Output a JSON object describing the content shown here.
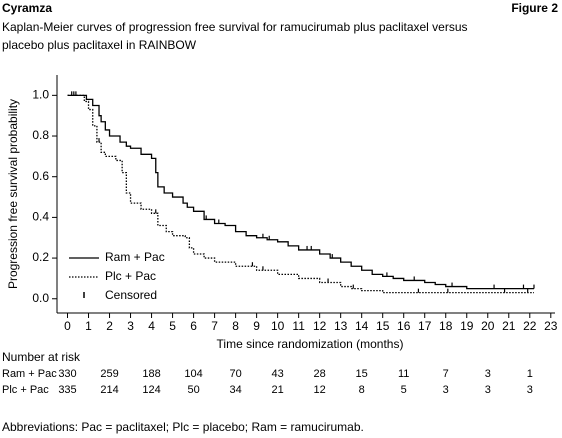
{
  "header": {
    "left": "Cyramza",
    "right": "Figure 2"
  },
  "chart_data": {
    "type": "km-step",
    "title": [
      "Kaplan-Meier curves of progression free survival for ramucirumab plus paclitaxel versus",
      "placebo plus paclitaxel in RAINBOW"
    ],
    "xlabel": "Time since randomization (months)",
    "ylabel": "Progression free survival probability",
    "xlim": [
      -0.5,
      23.2
    ],
    "ylim": [
      -0.07,
      1.1
    ],
    "xticks": [
      0,
      1,
      2,
      3,
      4,
      5,
      6,
      7,
      8,
      9,
      10,
      11,
      12,
      13,
      14,
      15,
      16,
      17,
      18,
      19,
      20,
      21,
      22,
      23
    ],
    "yticks": [
      {
        "value": 0,
        "label": "0.0"
      },
      {
        "value": 0.2,
        "label": "0.2"
      },
      {
        "value": 0.4,
        "label": "0.4"
      },
      {
        "value": 0.6,
        "label": "0.6"
      },
      {
        "value": 0.8,
        "label": "0.8"
      },
      {
        "value": 1,
        "label": "1.0"
      }
    ],
    "drawstyle": "steps-post",
    "legend": "lower left",
    "censored_label": "Censored",
    "series": [
      {
        "name": "Ram + Pac",
        "color": "#000000",
        "dash": "solid",
        "x": [
          0,
          0.5,
          0.9,
          1.2,
          1.5,
          1.6,
          1.8,
          2.0,
          2.5,
          2.8,
          3.0,
          3.5,
          4.0,
          4.2,
          4.3,
          4.6,
          5.0,
          5.5,
          5.7,
          6.0,
          6.5,
          7.0,
          7.5,
          8.0,
          8.5,
          9.0,
          9.5,
          10.0,
          10.5,
          11.0,
          12.0,
          12.5,
          13.0,
          13.5,
          14.0,
          14.5,
          15.0,
          15.5,
          16.0,
          17.0,
          17.5,
          18.0,
          19.0,
          22.2
        ],
        "values": [
          1.0,
          1.0,
          0.98,
          0.95,
          0.9,
          0.87,
          0.83,
          0.8,
          0.77,
          0.75,
          0.74,
          0.71,
          0.69,
          0.62,
          0.55,
          0.52,
          0.5,
          0.47,
          0.45,
          0.43,
          0.39,
          0.37,
          0.36,
          0.33,
          0.31,
          0.3,
          0.29,
          0.28,
          0.26,
          0.24,
          0.22,
          0.2,
          0.18,
          0.16,
          0.14,
          0.12,
          0.11,
          0.1,
          0.09,
          0.08,
          0.07,
          0.06,
          0.05,
          0.05
        ],
        "censored_x": [
          0.2,
          0.4,
          6.6,
          7.2,
          9.3,
          9.6,
          11.4,
          11.6,
          12.6,
          15.2,
          16.5,
          18.3,
          20.3,
          21.7,
          22.2
        ]
      },
      {
        "name": "Plc + Pac",
        "color": "#000000",
        "dash": "dotted",
        "x": [
          0,
          0.5,
          0.8,
          1.0,
          1.2,
          1.4,
          1.6,
          1.8,
          2.3,
          2.6,
          2.8,
          3.0,
          3.5,
          4.0,
          4.3,
          4.7,
          5.0,
          5.6,
          5.8,
          6.0,
          6.5,
          7.0,
          8.0,
          9.0,
          10.0,
          11.0,
          12.0,
          13.0,
          13.5,
          14.0,
          15.0,
          22.2
        ],
        "values": [
          1.0,
          1.0,
          0.97,
          0.93,
          0.85,
          0.77,
          0.72,
          0.7,
          0.68,
          0.62,
          0.52,
          0.47,
          0.44,
          0.42,
          0.36,
          0.33,
          0.31,
          0.3,
          0.25,
          0.22,
          0.2,
          0.18,
          0.16,
          0.14,
          0.12,
          0.1,
          0.08,
          0.06,
          0.05,
          0.04,
          0.03,
          0.03
        ],
        "censored_x": [
          0.3,
          1.5,
          4.2,
          8.8,
          9.3,
          12.4,
          13.6,
          16.7,
          18.1,
          20.8,
          21.9
        ]
      }
    ],
    "risk_table": {
      "title": "Number at risk",
      "rows": [
        {
          "name": "Ram + Pac",
          "values": [
            330,
            259,
            188,
            104,
            70,
            43,
            28,
            15,
            11,
            7,
            3,
            1
          ]
        },
        {
          "name": "Plc + Pac",
          "values": [
            335,
            214,
            124,
            50,
            34,
            21,
            12,
            8,
            5,
            3,
            3,
            3
          ]
        }
      ]
    }
  },
  "footnote": "Abbreviations: Pac = paclitaxel; Plc = placebo; Ram = ramucirumab."
}
